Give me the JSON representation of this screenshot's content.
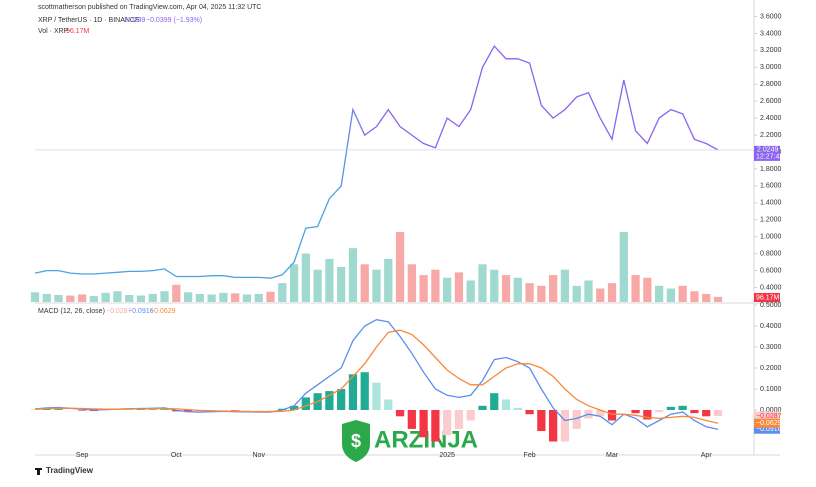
{
  "header": {
    "publisher": "scottmatherson published on TradingView.com, Apr 04, 2025 11:32 UTC",
    "footer": "TradingView",
    "watermark": "ARZINJA"
  },
  "chart_data": [
    {
      "type": "line",
      "title": "XRP / TetherUS · 1D · BINANCE",
      "change": "−0.0399 (−1.93%)",
      "countdown": "12:27:42",
      "series": [
        {
          "name": "XRP / TetherUS",
          "colors": [
            "#4aa3df",
            "#8a63f0"
          ],
          "last_label": "2.0249",
          "values": [
            0.57,
            0.6,
            0.6,
            0.57,
            0.56,
            0.56,
            0.57,
            0.58,
            0.59,
            0.59,
            0.6,
            0.62,
            0.53,
            0.53,
            0.53,
            0.54,
            0.54,
            0.52,
            0.52,
            0.52,
            0.51,
            0.55,
            0.7,
            1.1,
            1.12,
            1.45,
            1.6,
            2.5,
            2.2,
            2.3,
            2.5,
            2.3,
            2.2,
            2.1,
            2.05,
            2.4,
            2.3,
            2.5,
            3.0,
            3.25,
            3.1,
            3.1,
            3.05,
            2.55,
            2.4,
            2.5,
            2.65,
            2.7,
            2.4,
            2.15,
            2.85,
            2.25,
            2.1,
            2.4,
            2.5,
            2.45,
            2.15,
            2.1,
            2.0249
          ]
        }
      ],
      "ylim": [
        0.3,
        3.7
      ],
      "yticks": [
        {
          "value": 0.4,
          "label": "0.4000"
        },
        {
          "value": 0.6,
          "label": "0.6000"
        },
        {
          "value": 0.8,
          "label": "0.8000"
        },
        {
          "value": 1.0,
          "label": "1.0000"
        },
        {
          "value": 1.2,
          "label": "1.2000"
        },
        {
          "value": 1.4,
          "label": "1.4000"
        },
        {
          "value": 1.6,
          "label": "1.6000"
        },
        {
          "value": 1.8,
          "label": "1.8000"
        },
        {
          "value": 2.0,
          "label": "2.0000"
        },
        {
          "value": 2.2,
          "label": "2.2000"
        },
        {
          "value": 2.4,
          "label": "2.4000"
        },
        {
          "value": 2.6,
          "label": "2.6000"
        },
        {
          "value": 2.8,
          "label": "2.8000"
        },
        {
          "value": 3.0,
          "label": "3.0000"
        },
        {
          "value": 3.2,
          "label": "3.2000"
        },
        {
          "value": 3.4,
          "label": "3.4000"
        },
        {
          "value": 3.6,
          "label": "3.6000"
        }
      ],
      "grid": false
    },
    {
      "type": "bar",
      "title": "Vol · XRP",
      "last_label": "96.17M",
      "up_color": "#9fd9cf",
      "down_color": "#f6a9a6",
      "values": [
        180,
        150,
        130,
        120,
        140,
        110,
        170,
        200,
        130,
        120,
        150,
        200,
        320,
        180,
        150,
        140,
        170,
        160,
        140,
        150,
        190,
        350,
        700,
        900,
        600,
        800,
        650,
        1000,
        700,
        600,
        800,
        1300,
        700,
        500,
        600,
        450,
        550,
        400,
        700,
        600,
        500,
        450,
        350,
        300,
        500,
        600,
        300,
        400,
        250,
        350,
        1300,
        500,
        450,
        300,
        250,
        300,
        200,
        150,
        96.17
      ]
    },
    {
      "type": "line",
      "title": "MACD (12, 26, close)",
      "categories": [
        null,
        null,
        null,
        null,
        "Sep",
        null,
        null,
        null,
        null,
        null,
        null,
        null,
        "Oct",
        null,
        null,
        null,
        null,
        null,
        null,
        "Nov",
        null,
        null,
        null,
        null,
        null,
        null,
        null,
        null,
        null,
        null,
        null,
        null,
        null,
        null,
        null,
        "2025",
        null,
        null,
        null,
        null,
        null,
        null,
        "Feb",
        null,
        null,
        null,
        null,
        null,
        null,
        "Mar",
        null,
        null,
        null,
        null,
        null,
        null,
        null,
        "Apr",
        null
      ],
      "series": [
        {
          "name": "Histogram",
          "type": "bar",
          "colors": [
            "#22ab94",
            "#ace5dc",
            "#f23645",
            "#fccbcd"
          ],
          "last_label": "−0.0287",
          "values": [
            0.001,
            0.004,
            0.004,
            0.0,
            -0.003,
            -0.005,
            -0.002,
            0.0,
            0.001,
            0.002,
            0.002,
            0.003,
            -0.007,
            -0.01,
            -0.008,
            -0.004,
            -0.001,
            -0.002,
            -0.002,
            -0.002,
            -0.002,
            0.006,
            0.02,
            0.06,
            0.08,
            0.09,
            0.1,
            0.17,
            0.18,
            0.13,
            0.05,
            -0.03,
            -0.09,
            -0.13,
            -0.15,
            -0.12,
            -0.09,
            -0.05,
            0.02,
            0.08,
            0.05,
            0.01,
            -0.02,
            -0.1,
            -0.15,
            -0.15,
            -0.09,
            -0.04,
            -0.03,
            -0.05,
            0.0,
            -0.015,
            -0.045,
            -0.01,
            0.015,
            0.02,
            -0.015,
            -0.03,
            -0.0287
          ]
        },
        {
          "name": "MACD",
          "color": "#5b8def",
          "last_label": "−0.0916",
          "values": [
            0.005,
            0.01,
            0.012,
            0.008,
            0.004,
            0.0,
            0.002,
            0.004,
            0.006,
            0.007,
            0.008,
            0.01,
            -0.002,
            -0.008,
            -0.01,
            -0.008,
            -0.006,
            -0.008,
            -0.009,
            -0.01,
            -0.01,
            0.0,
            0.02,
            0.08,
            0.12,
            0.16,
            0.2,
            0.33,
            0.4,
            0.43,
            0.42,
            0.35,
            0.27,
            0.18,
            0.1,
            0.07,
            0.06,
            0.07,
            0.14,
            0.24,
            0.25,
            0.23,
            0.2,
            0.1,
            0.01,
            -0.05,
            -0.04,
            -0.02,
            -0.03,
            -0.07,
            -0.02,
            -0.04,
            -0.08,
            -0.05,
            -0.02,
            -0.01,
            -0.05,
            -0.08,
            -0.0916
          ]
        },
        {
          "name": "Signal",
          "color": "#f7893b",
          "last_label": "−0.0629",
          "values": [
            0.004,
            0.006,
            0.008,
            0.008,
            0.007,
            0.005,
            0.004,
            0.004,
            0.005,
            0.005,
            0.006,
            0.007,
            0.005,
            0.002,
            -0.002,
            -0.004,
            -0.005,
            -0.006,
            -0.007,
            -0.008,
            -0.008,
            -0.006,
            0.0,
            0.02,
            0.04,
            0.07,
            0.1,
            0.16,
            0.22,
            0.3,
            0.37,
            0.38,
            0.36,
            0.31,
            0.25,
            0.19,
            0.15,
            0.12,
            0.12,
            0.16,
            0.2,
            0.22,
            0.22,
            0.2,
            0.16,
            0.1,
            0.05,
            0.02,
            0.0,
            -0.02,
            -0.02,
            -0.025,
            -0.035,
            -0.04,
            -0.035,
            -0.03,
            -0.035,
            -0.05,
            -0.0629
          ]
        }
      ],
      "ylim": [
        -0.2,
        0.5
      ],
      "yticks": [
        {
          "value": 0.0,
          "label": "0.0000"
        },
        {
          "value": 0.1,
          "label": "0.1000"
        },
        {
          "value": 0.2,
          "label": "0.2000"
        },
        {
          "value": 0.3,
          "label": "0.3000"
        },
        {
          "value": 0.4,
          "label": "0.4000"
        },
        {
          "value": 0.5,
          "label": "0.5000"
        }
      ]
    }
  ]
}
